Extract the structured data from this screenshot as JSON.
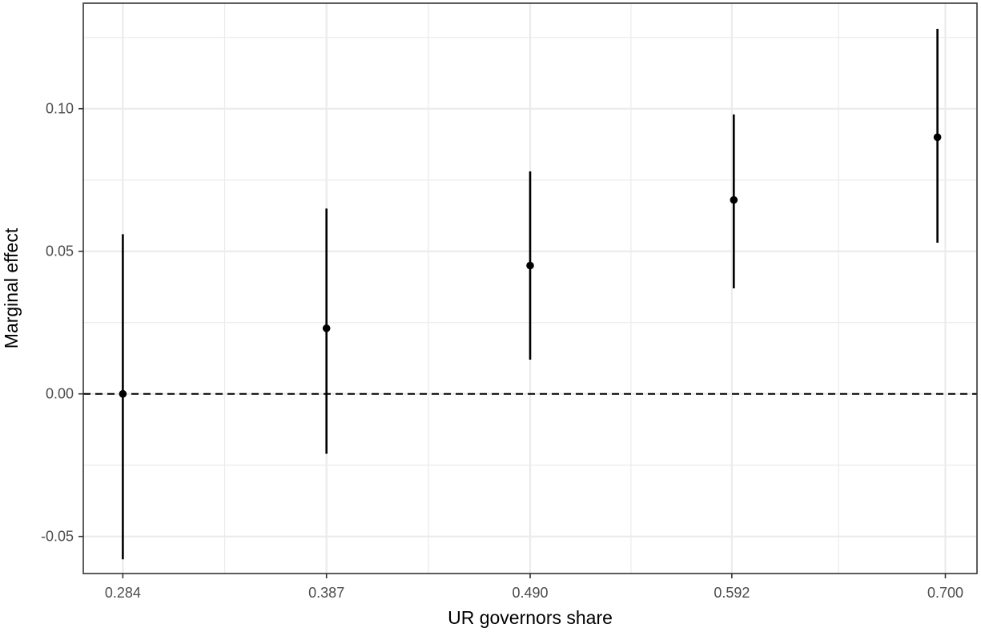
{
  "chart_data": {
    "type": "scatter",
    "subtype": "point-with-error-bars",
    "xlabel": "UR governors share",
    "ylabel": "Marginal effect",
    "x_tick_labels": [
      "0.284",
      "0.387",
      "0.490",
      "0.592",
      "0.700"
    ],
    "y_tick_labels": [
      "-0.05",
      "0.00",
      "0.05",
      "0.10"
    ],
    "y_ticks": [
      -0.05,
      0.0,
      0.05,
      0.1
    ],
    "xlim": [
      0.264,
      0.716
    ],
    "ylim": [
      -0.063,
      0.137
    ],
    "points": [
      {
        "x": 0.284,
        "y": 0.0,
        "lower": -0.058,
        "upper": 0.056
      },
      {
        "x": 0.387,
        "y": 0.023,
        "lower": -0.021,
        "upper": 0.065
      },
      {
        "x": 0.49,
        "y": 0.045,
        "lower": 0.012,
        "upper": 0.078
      },
      {
        "x": 0.593,
        "y": 0.068,
        "lower": 0.037,
        "upper": 0.098
      },
      {
        "x": 0.696,
        "y": 0.09,
        "lower": 0.053,
        "upper": 0.128
      }
    ],
    "reference_line": {
      "y": 0.0,
      "style": "dashed"
    },
    "grid": true,
    "theme": "bw",
    "colors": {
      "point": "#000000",
      "grid": "#ebebeb",
      "border": "#333333"
    }
  }
}
